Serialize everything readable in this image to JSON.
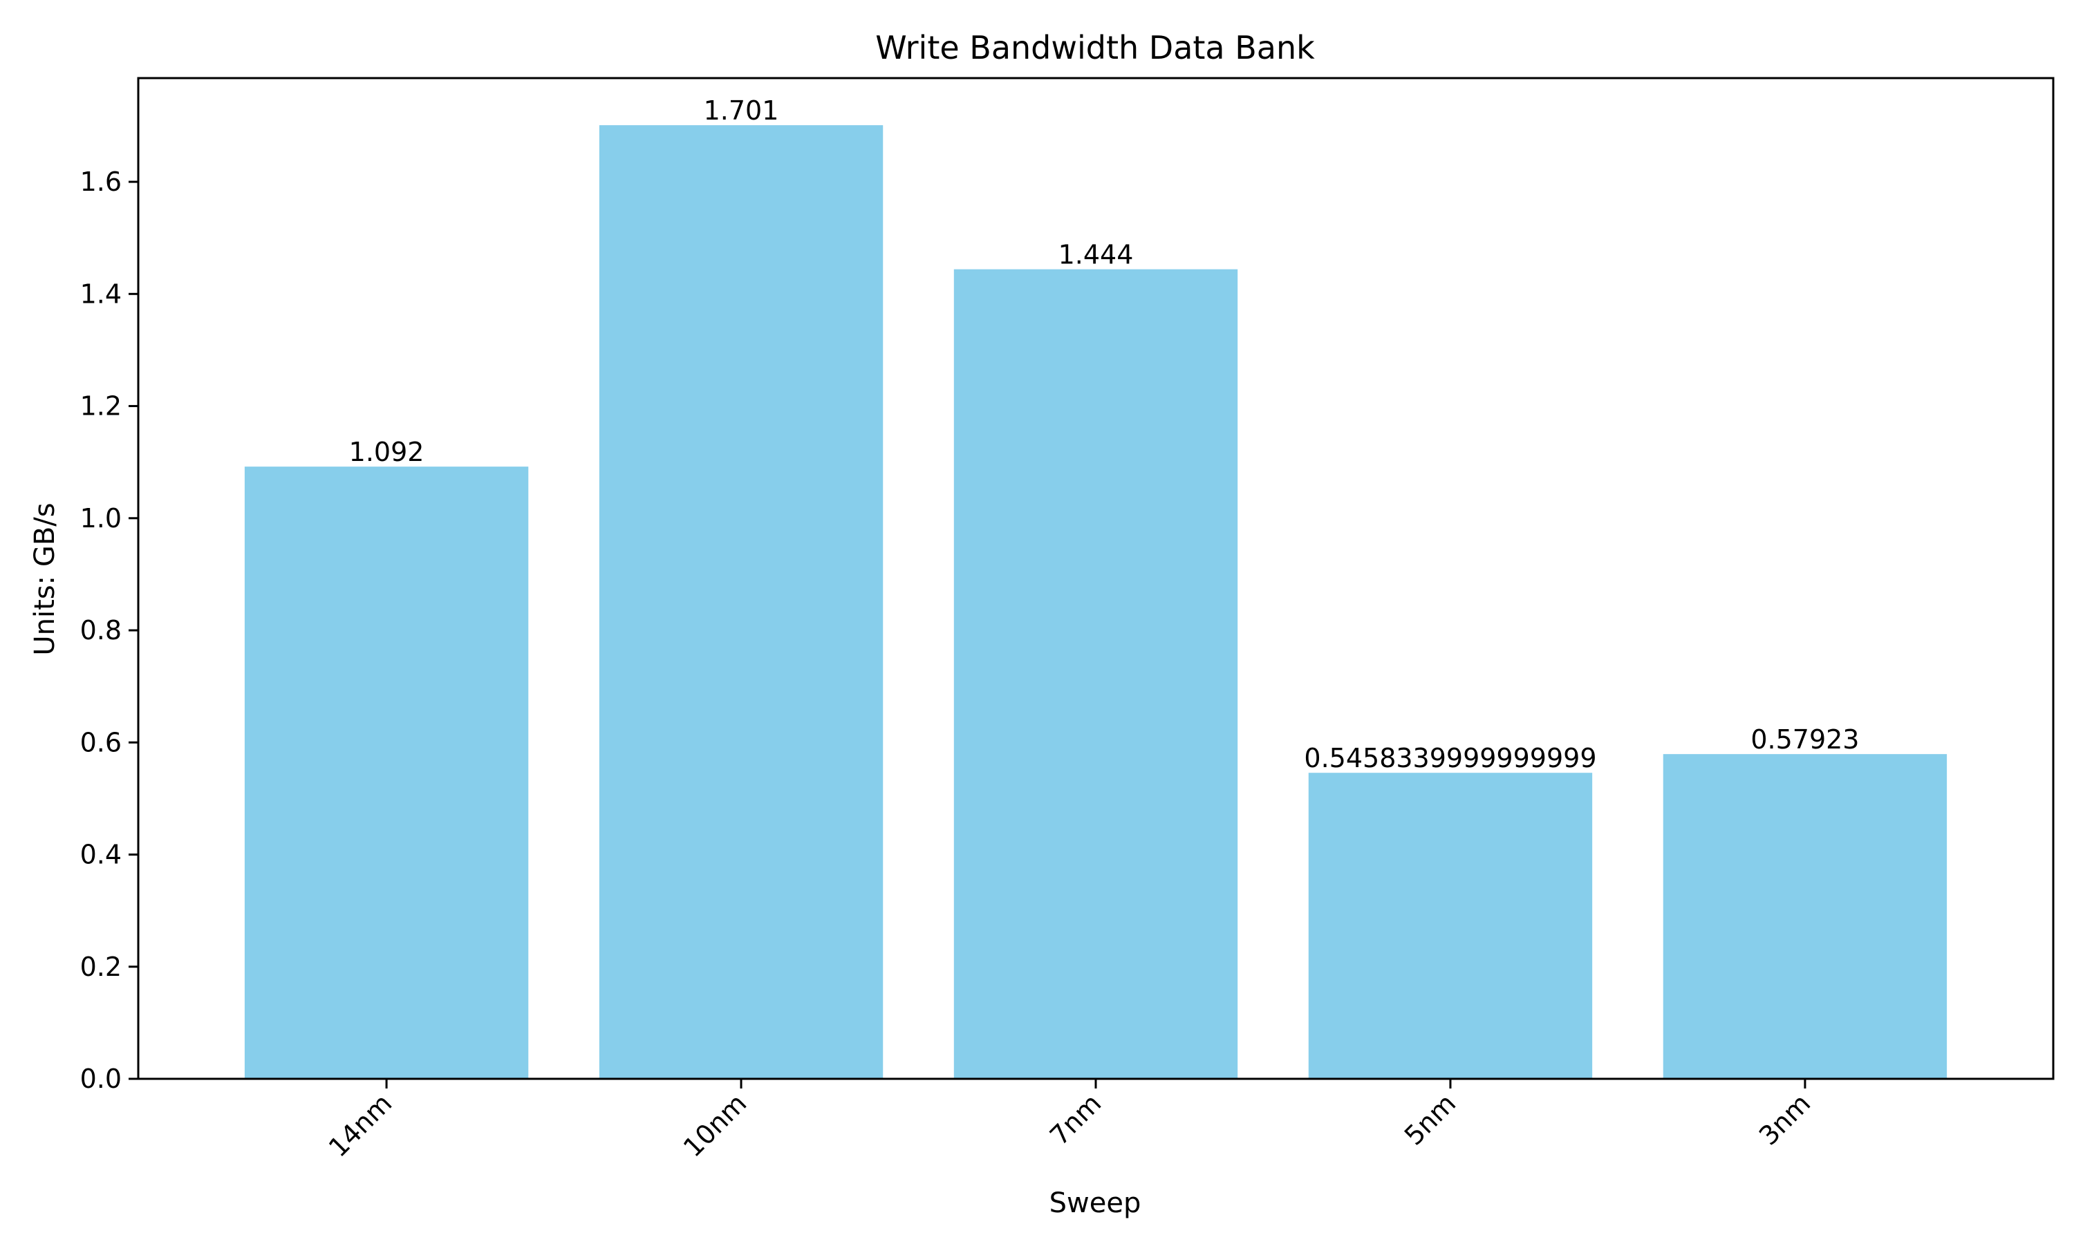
{
  "chart_data": {
    "type": "bar",
    "title": "Write Bandwidth Data Bank",
    "xlabel": "Sweep",
    "ylabel": "Units: GB/s",
    "categories": [
      "14nm",
      "10nm",
      "7nm",
      "5nm",
      "3nm"
    ],
    "values": [
      1.092,
      1.701,
      1.444,
      0.5458339999999999,
      0.57923
    ],
    "value_labels": [
      "1.092",
      "1.701",
      "1.444",
      "0.5458339999999999",
      "0.57923"
    ],
    "ylim": [
      0,
      1.785
    ],
    "yticks": [
      0.0,
      0.2,
      0.4,
      0.6,
      0.8,
      1.0,
      1.2,
      1.4,
      1.6
    ],
    "ytick_labels": [
      "0.0",
      "0.2",
      "0.4",
      "0.6",
      "0.8",
      "1.0",
      "1.2",
      "1.4",
      "1.6"
    ],
    "bar_color": "#87CEEB",
    "grid": false,
    "legend": "none"
  }
}
